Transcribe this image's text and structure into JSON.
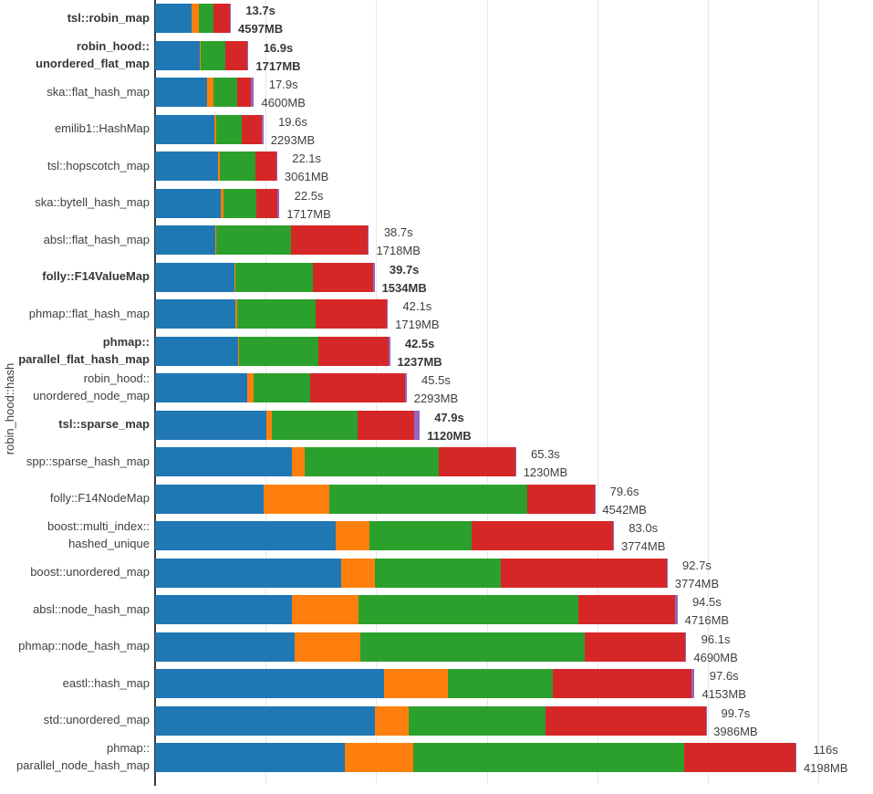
{
  "chart_data": {
    "type": "bar",
    "orientation": "horizontal",
    "stacked": true,
    "title": "",
    "xlabel": "",
    "ylabel": "robin_hood::hash",
    "xlim_seconds": [
      0,
      129.9
    ],
    "grid": true,
    "gridlines_seconds": [
      20,
      40,
      60,
      80,
      100,
      120
    ],
    "legend": "none",
    "segment_order": [
      "blue",
      "orange",
      "green",
      "red",
      "purple"
    ],
    "series_colors": {
      "blue": "#1f77b4",
      "orange": "#ff7f0e",
      "green": "#2ca02c",
      "red": "#d62728",
      "purple": "#9467bd"
    },
    "rows": [
      {
        "label_lines": [
          "tsl::robin_map"
        ],
        "bold": true,
        "time_label": "13.7s",
        "memory_label": "4597MB",
        "time_s": 13.7,
        "memory_mb": 4597,
        "segments_s": [
          6.6,
          1.3,
          2.7,
          2.9,
          0.2
        ]
      },
      {
        "label_lines": [
          "robin_hood::",
          "unordered_flat_map"
        ],
        "bold": true,
        "time_label": "16.9s",
        "memory_label": "1717MB",
        "time_s": 16.9,
        "memory_mb": 1717,
        "segments_s": [
          8.1,
          0.1,
          4.5,
          4.0,
          0.2
        ]
      },
      {
        "label_lines": [
          "ska::flat_hash_map"
        ],
        "bold": false,
        "time_label": "17.9s",
        "memory_label": "4600MB",
        "time_s": 17.9,
        "memory_mb": 4600,
        "segments_s": [
          9.4,
          1.1,
          4.3,
          2.6,
          0.5
        ]
      },
      {
        "label_lines": [
          "emilib1::HashMap"
        ],
        "bold": false,
        "time_label": "19.6s",
        "memory_label": "2293MB",
        "time_s": 19.6,
        "memory_mb": 2293,
        "segments_s": [
          10.8,
          0.3,
          4.6,
          3.6,
          0.3
        ]
      },
      {
        "label_lines": [
          "tsl::hopscotch_map"
        ],
        "bold": false,
        "time_label": "22.1s",
        "memory_label": "3061MB",
        "time_s": 22.1,
        "memory_mb": 3061,
        "segments_s": [
          11.4,
          0.3,
          6.5,
          3.8,
          0.1
        ]
      },
      {
        "label_lines": [
          "ska::bytell_hash_map"
        ],
        "bold": false,
        "time_label": "22.5s",
        "memory_label": "1717MB",
        "time_s": 22.5,
        "memory_mb": 1717,
        "segments_s": [
          11.8,
          0.5,
          6.1,
          3.7,
          0.4
        ]
      },
      {
        "label_lines": [
          "absl::flat_hash_map"
        ],
        "bold": false,
        "time_label": "38.7s",
        "memory_label": "1718MB",
        "time_s": 38.7,
        "memory_mb": 1718,
        "segments_s": [
          10.9,
          0.2,
          13.5,
          13.8,
          0.3
        ]
      },
      {
        "label_lines": [
          "folly::F14ValueMap"
        ],
        "bold": true,
        "time_label": "39.7s",
        "memory_label": "1534MB",
        "time_s": 39.7,
        "memory_mb": 1534,
        "segments_s": [
          14.4,
          0.1,
          14.1,
          10.8,
          0.3
        ]
      },
      {
        "label_lines": [
          "phmap::flat_hash_map"
        ],
        "bold": false,
        "time_label": "42.1s",
        "memory_label": "1719MB",
        "time_s": 42.1,
        "memory_mb": 1719,
        "segments_s": [
          14.6,
          0.2,
          14.2,
          13.0,
          0.1
        ]
      },
      {
        "label_lines": [
          "phmap::",
          "parallel_flat_hash_map"
        ],
        "bold": true,
        "time_label": "42.5s",
        "memory_label": "1237MB",
        "time_s": 42.5,
        "memory_mb": 1237,
        "segments_s": [
          15.0,
          0.2,
          14.4,
          12.6,
          0.3
        ]
      },
      {
        "label_lines": [
          "robin_hood::",
          "unordered_node_map"
        ],
        "bold": false,
        "time_label": "45.5s",
        "memory_label": "2293MB",
        "time_s": 45.5,
        "memory_mb": 2293,
        "segments_s": [
          16.6,
          1.2,
          10.2,
          17.3,
          0.2
        ]
      },
      {
        "label_lines": [
          "tsl::sparse_map"
        ],
        "bold": true,
        "time_label": "47.9s",
        "memory_label": "1120MB",
        "time_s": 47.9,
        "memory_mb": 1120,
        "segments_s": [
          20.1,
          1.1,
          15.5,
          10.2,
          1.0
        ]
      },
      {
        "label_lines": [
          "spp::sparse_hash_map"
        ],
        "bold": false,
        "time_label": "65.3s",
        "memory_label": "1230MB",
        "time_s": 65.3,
        "memory_mb": 1230,
        "segments_s": [
          24.8,
          2.3,
          24.3,
          13.8,
          0.1
        ]
      },
      {
        "label_lines": [
          "folly::F14NodeMap"
        ],
        "bold": false,
        "time_label": "79.6s",
        "memory_label": "4542MB",
        "time_s": 79.6,
        "memory_mb": 4542,
        "segments_s": [
          19.7,
          11.8,
          35.9,
          12.1,
          0.1
        ]
      },
      {
        "label_lines": [
          "boost::multi_index::",
          "hashed_unique"
        ],
        "bold": false,
        "time_label": "83.0s",
        "memory_label": "3774MB",
        "time_s": 83.0,
        "memory_mb": 3774,
        "segments_s": [
          32.6,
          6.1,
          18.6,
          25.6,
          0.1
        ]
      },
      {
        "label_lines": [
          "boost::unordered_map"
        ],
        "bold": false,
        "time_label": "92.7s",
        "memory_label": "3774MB",
        "time_s": 92.7,
        "memory_mb": 3774,
        "segments_s": [
          33.7,
          6.0,
          22.8,
          30.1,
          0.1
        ]
      },
      {
        "label_lines": [
          "absl::node_hash_map"
        ],
        "bold": false,
        "time_label": "94.5s",
        "memory_label": "4716MB",
        "time_s": 94.5,
        "memory_mb": 4716,
        "segments_s": [
          24.8,
          12.0,
          39.8,
          17.4,
          0.5
        ]
      },
      {
        "label_lines": [
          "phmap::node_hash_map"
        ],
        "bold": false,
        "time_label": "96.1s",
        "memory_label": "4690MB",
        "time_s": 96.1,
        "memory_mb": 4690,
        "segments_s": [
          25.3,
          11.9,
          40.5,
          18.1,
          0.3
        ]
      },
      {
        "label_lines": [
          "eastl::hash_map"
        ],
        "bold": false,
        "time_label": "97.6s",
        "memory_label": "4153MB",
        "time_s": 97.6,
        "memory_mb": 4153,
        "segments_s": [
          41.4,
          11.5,
          19.0,
          25.2,
          0.5
        ]
      },
      {
        "label_lines": [
          "std::unordered_map"
        ],
        "bold": false,
        "time_label": "99.7s",
        "memory_label": "3986MB",
        "time_s": 99.7,
        "memory_mb": 3986,
        "segments_s": [
          39.7,
          6.1,
          24.8,
          29.0,
          0.1
        ]
      },
      {
        "label_lines": [
          "phmap::",
          "parallel_node_hash_map"
        ],
        "bold": false,
        "time_label": "116s",
        "memory_label": "4198MB",
        "time_s": 116.0,
        "memory_mb": 4198,
        "segments_s": [
          34.4,
          12.3,
          49.0,
          20.1,
          0.2
        ]
      }
    ]
  },
  "style_colors": {
    "background": "#ffffff",
    "axis_line": "#3a3a3a",
    "gridline": "#e7e7e7",
    "text": "#3f3f3f"
  }
}
